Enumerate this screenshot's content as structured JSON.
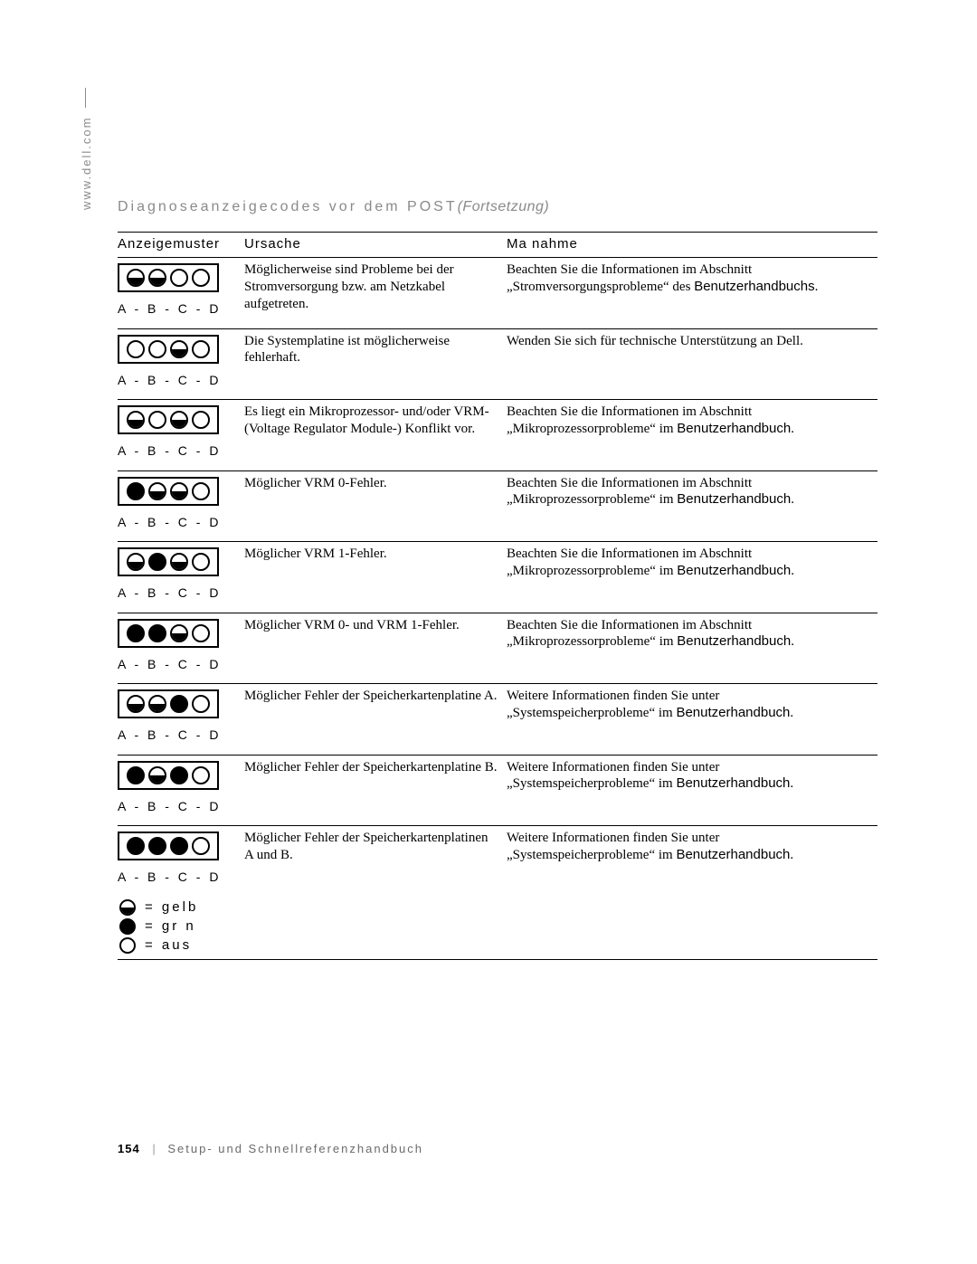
{
  "sidetext": "www.dell.com",
  "title_main": "Diagnoseanzeigecodes vor dem POST",
  "title_cont": "(Fortsetzung)",
  "columns": {
    "pattern": "Anzeigemuster",
    "cause": "Ursache",
    "action": "Ma nahme"
  },
  "pattern_letters": "A - B - C - D",
  "rows": [
    {
      "leds": [
        "half",
        "half",
        "off",
        "off"
      ],
      "cause": "Möglicherweise sind Probleme bei der Stromversorgung bzw. am Netzkabel aufgetreten.",
      "action_pre": "Beachten Sie die Informationen im Abschnitt „Stromversorgungsprobleme“ des ",
      "action_ref": "Benutzerhandbuchs",
      "action_post": "."
    },
    {
      "leds": [
        "off",
        "off",
        "half",
        "off"
      ],
      "cause": "Die Systemplatine ist möglicherweise fehlerhaft.",
      "action_pre": "Wenden Sie sich für technische Unterstützung an Dell.",
      "action_ref": "",
      "action_post": ""
    },
    {
      "leds": [
        "half",
        "off",
        "half",
        "off"
      ],
      "cause": "Es liegt ein Mikroprozessor- und/oder VRM-(Voltage Regulator Module-) Konflikt vor.",
      "action_pre": "Beachten Sie die Informationen im Abschnitt „Mikroprozessorprobleme“ im ",
      "action_ref": "Benutzerhandbuch",
      "action_post": "."
    },
    {
      "leds": [
        "solid",
        "half",
        "half",
        "off"
      ],
      "cause": "Möglicher VRM 0-Fehler.",
      "action_pre": "Beachten Sie die Informationen im Abschnitt „Mikroprozessorprobleme“ im ",
      "action_ref": "Benutzerhandbuch",
      "action_post": "."
    },
    {
      "leds": [
        "half",
        "solid",
        "half",
        "off"
      ],
      "cause": "Möglicher VRM 1-Fehler.",
      "action_pre": "Beachten Sie die Informationen im Abschnitt „Mikroprozessorprobleme“ im ",
      "action_ref": "Benutzerhandbuch",
      "action_post": "."
    },
    {
      "leds": [
        "solid",
        "solid",
        "half",
        "off"
      ],
      "cause": "Möglicher VRM 0- und VRM 1-Fehler.",
      "action_pre": "Beachten Sie die Informationen im Abschnitt „Mikroprozessorprobleme“ im ",
      "action_ref": "Benutzerhandbuch",
      "action_post": "."
    },
    {
      "leds": [
        "half",
        "half",
        "solid",
        "off"
      ],
      "cause": "Möglicher Fehler der Speicherkartenplatine A.",
      "action_pre": "Weitere Informationen finden Sie unter „Systemspeicherprobleme“ im ",
      "action_ref": "Benutzerhandbuch",
      "action_post": "."
    },
    {
      "leds": [
        "solid",
        "half",
        "solid",
        "off"
      ],
      "cause": "Möglicher Fehler der Speicherkartenplatine B.",
      "action_pre": "Weitere Informationen finden Sie unter „Systemspeicherprobleme“ im ",
      "action_ref": "Benutzerhandbuch",
      "action_post": "."
    },
    {
      "leds": [
        "solid",
        "solid",
        "solid",
        "off"
      ],
      "cause": "Möglicher Fehler der Speicherkartenplatinen A und B.",
      "action_pre": "Weitere Informationen finden Sie unter „Systemspeicherprobleme“ im ",
      "action_ref": "Benutzerhandbuch",
      "action_post": "."
    }
  ],
  "legend": {
    "yellow": "= gelb",
    "green": "= gr n",
    "off": "= aus"
  },
  "footer": {
    "page": "154",
    "text": "Setup- und Schnellreferenzhandbuch"
  }
}
